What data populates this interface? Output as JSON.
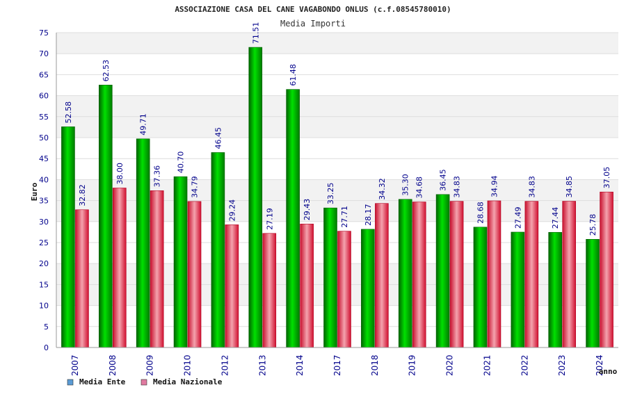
{
  "chart_data": {
    "type": "bar",
    "title": "ASSOCIAZIONE CASA DEL CANE VAGABONDO ONLUS (c.f.08545780010)",
    "subtitle": "Media Importi",
    "xlabel": "anno",
    "ylabel": "Euro",
    "ylim": [
      0,
      75
    ],
    "yticks": [
      "0",
      "5",
      "10",
      "15",
      "20",
      "25",
      "30",
      "35",
      "40",
      "45",
      "50",
      "55",
      "60",
      "65",
      "70",
      "75"
    ],
    "grid": true,
    "legend_position": "bottom-left",
    "categories": [
      "2007",
      "2008",
      "2009",
      "2010",
      "2012",
      "2013",
      "2014",
      "2017",
      "2018",
      "2019",
      "2020",
      "2021",
      "2022",
      "2023",
      "2024"
    ],
    "series": [
      {
        "name": "Media Ente",
        "color": "#00bb00",
        "legend_color": "#5b9bd5",
        "values": [
          52.58,
          62.53,
          49.71,
          40.7,
          46.45,
          71.51,
          61.48,
          33.25,
          28.17,
          35.3,
          36.45,
          28.68,
          27.49,
          27.44,
          25.78
        ],
        "labels": [
          "52.58",
          "62.53",
          "49.71",
          "40.70",
          "46.45",
          "71.51",
          "61.48",
          "33.25",
          "28.17",
          "35.30",
          "36.45",
          "28.68",
          "27.49",
          "27.44",
          "25.78"
        ]
      },
      {
        "name": "Media Nazionale",
        "color": "#e8344a",
        "legend_color": "#e07aa0",
        "values": [
          32.82,
          38.0,
          37.36,
          34.79,
          29.24,
          27.19,
          29.43,
          27.71,
          34.32,
          34.68,
          34.83,
          34.94,
          34.83,
          34.85,
          37.05
        ],
        "labels": [
          "32.82",
          "38.00",
          "37.36",
          "34.79",
          "29.24",
          "27.19",
          "29.43",
          "27.71",
          "34.32",
          "34.68",
          "34.83",
          "34.94",
          "34.83",
          "34.85",
          "37.05"
        ]
      }
    ]
  }
}
